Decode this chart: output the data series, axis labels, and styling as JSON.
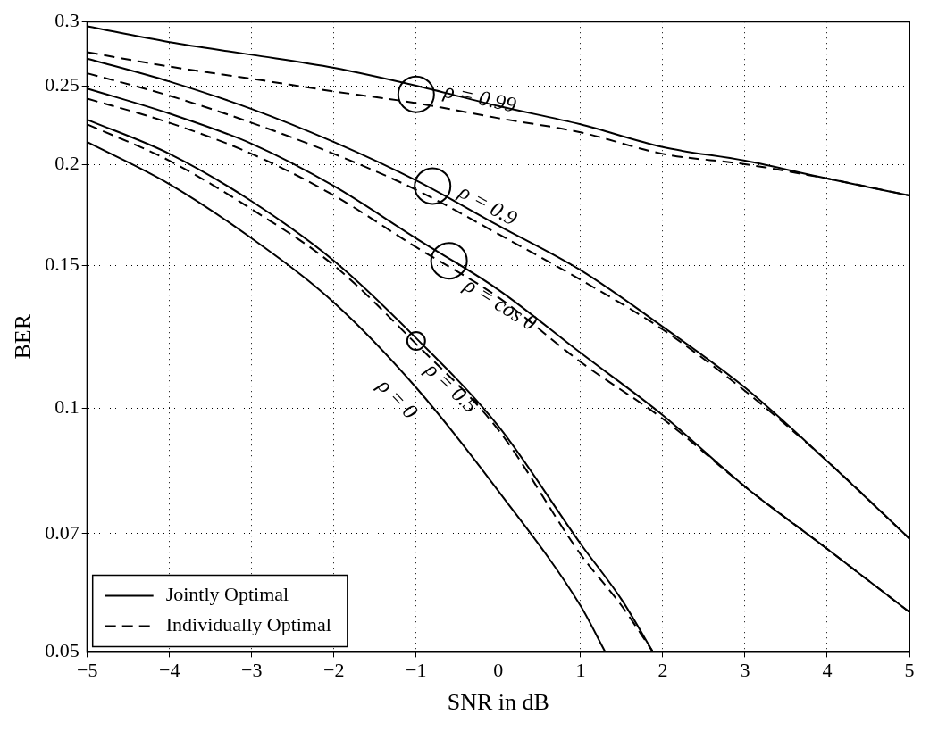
{
  "chart_data": {
    "type": "line",
    "xlabel": "SNR in dB",
    "ylabel": "BER",
    "x": [
      -5,
      -4,
      -3,
      -2,
      -1,
      0,
      1,
      2,
      3,
      4,
      5
    ],
    "series": [
      {
        "name": "Jointly Optimal",
        "color": "#000000",
        "line_style": "solid",
        "values": [
          0.296,
          0.283,
          0.273,
          0.263,
          0.25,
          0.236,
          0.224,
          0.21,
          0.202,
          0.192,
          0.183
        ]
      },
      {
        "name": "Individually Optimal",
        "color": "#000000",
        "line_style": "dashed",
        "values": [
          0.275,
          0.264,
          0.255,
          0.246,
          0.238,
          0.228,
          0.219,
          0.206,
          0.2,
          0.192,
          0.183
        ]
      },
      {
        "color": "#000000",
        "line_style": "solid",
        "values": [
          0.27,
          0.253,
          0.234,
          0.213,
          0.191,
          0.168,
          0.148,
          0.126,
          0.106,
          0.086,
          0.069
        ]
      },
      {
        "color": "#000000",
        "line_style": "dashed",
        "values": [
          0.259,
          0.243,
          0.225,
          0.206,
          0.186,
          0.164,
          0.144,
          0.125,
          0.105,
          0.086,
          0.069
        ]
      },
      {
        "color": "#000000",
        "line_style": "solid",
        "values": [
          0.248,
          0.231,
          0.212,
          0.188,
          0.162,
          0.14,
          0.117,
          0.098,
          0.08,
          0.067,
          0.056
        ]
      },
      {
        "color": "#000000",
        "line_style": "dashed",
        "values": [
          0.241,
          0.225,
          0.206,
          0.183,
          0.158,
          0.137,
          0.114,
          0.097,
          0.08,
          0.067,
          0.056
        ]
      },
      {
        "color": "#000000",
        "line_style": "solid",
        "x": [
          -5,
          -4,
          -3,
          -2,
          -1,
          0,
          1,
          1.5,
          1.88
        ],
        "values": [
          0.227,
          0.206,
          0.18,
          0.152,
          0.122,
          0.095,
          0.068,
          0.058,
          0.05
        ]
      },
      {
        "color": "#000000",
        "line_style": "dashed",
        "x": [
          -5,
          -4,
          -3,
          -2,
          -1,
          0,
          1,
          1.5,
          1.88
        ],
        "values": [
          0.224,
          0.202,
          0.176,
          0.15,
          0.12,
          0.094,
          0.066,
          0.057,
          0.05
        ]
      },
      {
        "color": "#000000",
        "line_style": "solid",
        "x": [
          -5,
          -4,
          -3,
          -2,
          -1,
          0,
          1,
          1.3
        ],
        "values": [
          0.213,
          0.189,
          0.162,
          0.135,
          0.106,
          0.079,
          0.057,
          0.05
        ]
      }
    ],
    "annotations": [
      {
        "text": "ρ = 0.99",
        "x": -1,
        "y": 0.244
      },
      {
        "text": "ρ = 0.9",
        "x": -0.8,
        "y": 0.188
      },
      {
        "text": "ρ = cos θ",
        "x": -0.6,
        "y": 0.152
      },
      {
        "text": "ρ = 0.5",
        "x": -1,
        "y": 0.121
      },
      {
        "text": "ρ = 0",
        "x": -1,
        "y": 0.108
      }
    ],
    "xlim": [
      -5,
      5
    ],
    "xticks": [
      -5,
      -4,
      -3,
      -2,
      -1,
      0,
      1,
      2,
      3,
      4,
      5
    ],
    "ylim": [
      0.05,
      0.3
    ],
    "yticks": [
      0.05,
      0.07,
      0.1,
      0.15,
      0.2,
      0.25,
      0.3
    ],
    "log": "y",
    "grid": true,
    "legend": "bottom left",
    "marker": "none"
  }
}
